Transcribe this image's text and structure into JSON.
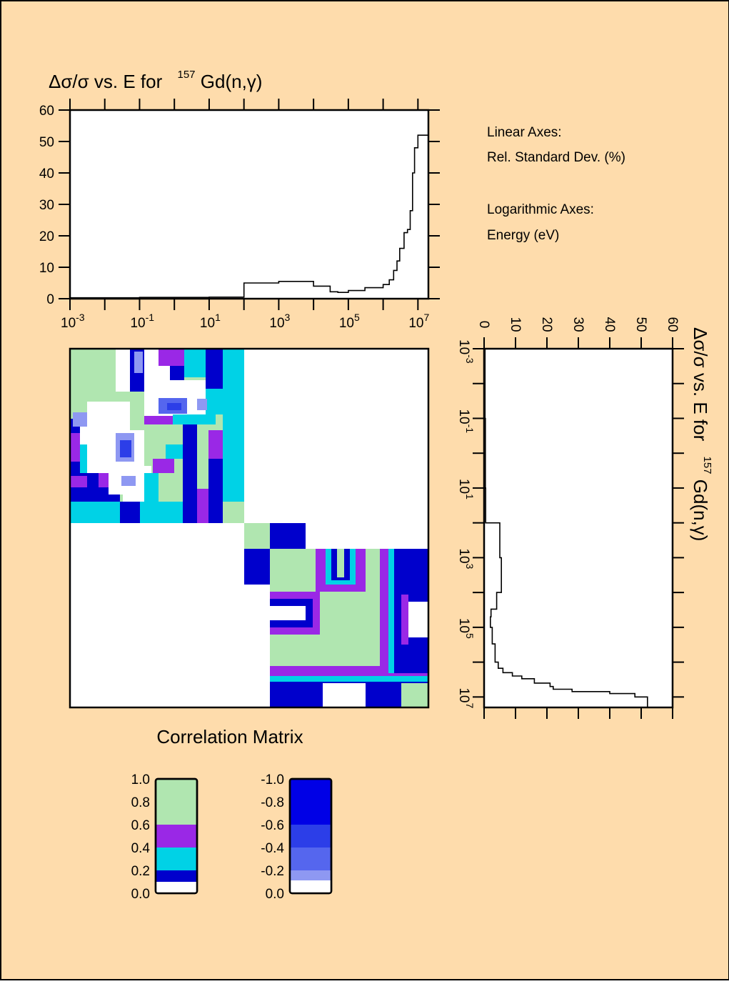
{
  "colors": {
    "background": "#fedcac",
    "corr_green": "#b0e6b0",
    "corr_purple": "#9a28e6",
    "corr_cyan": "#00d2e6",
    "corr_blue": "#0000cc",
    "corr_white": "#ffffff",
    "neg_1": "#0000e6",
    "neg_2": "#2c3ee8",
    "neg_3": "#5566ee",
    "neg_4": "#8e98f2",
    "neg_5": "#c7cbf8"
  },
  "top_plot": {
    "title_prefix": "Δσ/σ vs. E for",
    "title_mass": "157",
    "title_nuclide": "Gd(n,γ)"
  },
  "side_plot": {
    "title_prefix": "Δσ/σ vs. E for",
    "title_mass": "157",
    "title_nuclide": "Gd(n,γ)"
  },
  "notes": {
    "linear_heading": "Linear Axes:",
    "linear_desc": "Rel. Standard Dev. (%)",
    "log_heading": "Logarithmic Axes:",
    "log_desc": "Energy (eV)"
  },
  "matrix": {
    "caption": "Correlation Matrix"
  },
  "legend": {
    "positive_labels": [
      "1.0",
      "0.8",
      "0.6",
      "0.4",
      "0.2",
      "0.0"
    ],
    "negative_labels": [
      "-1.0",
      "-0.8",
      "-0.6",
      "-0.4",
      "-0.2",
      "0.0"
    ]
  },
  "chart_data": [
    {
      "type": "line",
      "title": "Δσ/σ vs. E for 157Gd(n,γ)",
      "xlabel": "Energy (eV)",
      "ylabel": "Rel. Standard Dev. (%)",
      "xscale": "log",
      "xlim": [
        0.001,
        20000000
      ],
      "ylim": [
        0,
        60
      ],
      "x_tick_labels": [
        "10-3",
        "10-1",
        "101",
        "103",
        "105",
        "107"
      ],
      "y_tick_labels": [
        "0",
        "10",
        "20",
        "30",
        "40",
        "50",
        "60"
      ],
      "grid": false,
      "step": true,
      "x": [
        0.001,
        0.01,
        0.1,
        1,
        10,
        100,
        100,
        300,
        1000,
        3000,
        10000,
        30000,
        50000,
        100000,
        300000,
        1000000,
        1500000,
        2000000,
        2500000,
        3000000,
        4000000,
        5000000,
        6000000,
        7000000,
        8000000,
        10000000,
        20000000
      ],
      "y": [
        0.3,
        0.3,
        0.4,
        0.4,
        0.5,
        0.5,
        5.0,
        5.0,
        5.5,
        5.5,
        4.0,
        2.2,
        2.0,
        2.6,
        3.5,
        4.5,
        6.0,
        9.0,
        12.0,
        16.0,
        21.0,
        22.0,
        28.0,
        40.0,
        48.0,
        52.0,
        52.0
      ]
    },
    {
      "type": "heatmap",
      "title": "Correlation Matrix",
      "axes": "log energy, 10-3 to 2x10^7 eV (both axes)",
      "blocks": [
        {
          "range_eV": [
            0.001,
            100
          ],
          "description": "resolved region block: correlations mostly 0.0-0.8, band of 0.0-0.2 and weak negatives"
        },
        {
          "range_eV": [
            100,
            1000
          ],
          "description": "small block: 0.8-1.0 on diagonal, -1.0 to -0.8 off-diagonal"
        },
        {
          "range_eV": [
            1000,
            20000000
          ],
          "description": "fast region block: 0.6-1.0 dominant, with 0.2-0.6 bands and 0.0 corners"
        }
      ],
      "legend_positive": [
        {
          "range": [
            0.6,
            1.0
          ],
          "color": "#b0e6b0"
        },
        {
          "range": [
            0.3,
            0.6
          ],
          "color": "#9a28e6"
        },
        {
          "range": [
            0.2,
            0.3
          ],
          "color": "#00d2e6"
        },
        {
          "range": [
            0.1,
            0.2
          ],
          "color": "#0000cc"
        },
        {
          "range": [
            0.0,
            0.1
          ],
          "color": "#ffffff"
        }
      ],
      "legend_negative": [
        {
          "range": [
            -1.0,
            -0.6
          ],
          "color": "#0000e6"
        },
        {
          "range": [
            -0.6,
            -0.4
          ],
          "color": "#2c3ee8"
        },
        {
          "range": [
            -0.4,
            -0.2
          ],
          "color": "#5566ee"
        },
        {
          "range": [
            -0.2,
            -0.1
          ],
          "color": "#8e98f2"
        },
        {
          "range": [
            -0.1,
            0.0
          ],
          "color": "#ffffff"
        }
      ]
    }
  ]
}
